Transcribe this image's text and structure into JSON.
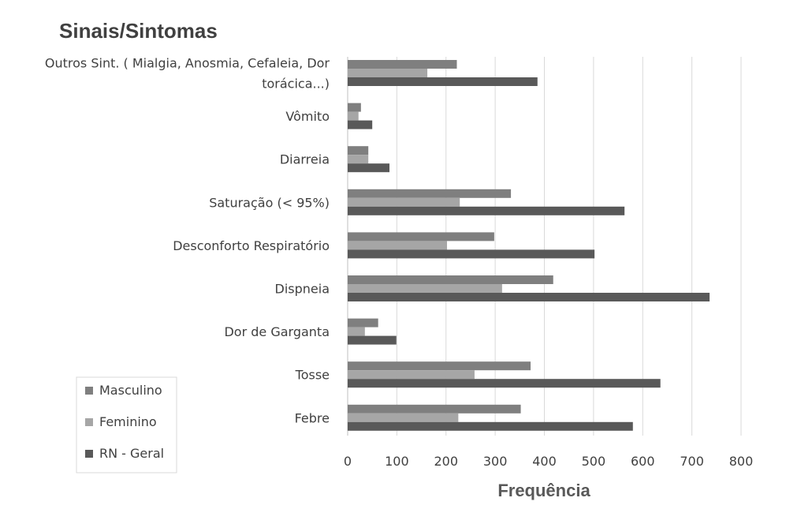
{
  "chart_data": {
    "type": "bar",
    "orientation": "horizontal",
    "title": "Sinais/Sintomas",
    "xlabel": "Frequência",
    "ylabel": "",
    "xlim": [
      0,
      800
    ],
    "xticks": [
      0,
      100,
      200,
      300,
      400,
      500,
      600,
      700,
      800
    ],
    "grid": true,
    "legend_position": "bottom-left",
    "categories": [
      [
        "Outros Sint. ( Mialgia, Anosmia, Cefaleia, Dor",
        "torácica...)"
      ],
      [
        "Vômito"
      ],
      [
        "Diarreia"
      ],
      [
        "Saturação (< 95%)"
      ],
      [
        "Desconforto Respiratório"
      ],
      [
        "Dispneia"
      ],
      [
        "Dor de Garganta"
      ],
      [
        "Tosse"
      ],
      [
        "Febre"
      ]
    ],
    "series": [
      {
        "name": "Masculino",
        "color": "#7f7f7f",
        "values": [
          222,
          27,
          42,
          332,
          298,
          418,
          62,
          372,
          352
        ]
      },
      {
        "name": "Feminino",
        "color": "#a6a6a6",
        "values": [
          162,
          22,
          42,
          228,
          202,
          314,
          35,
          258,
          225
        ]
      },
      {
        "name": "RN - Geral",
        "color": "#595959",
        "values": [
          386,
          50,
          85,
          563,
          502,
          736,
          99,
          636,
          580
        ]
      }
    ]
  }
}
